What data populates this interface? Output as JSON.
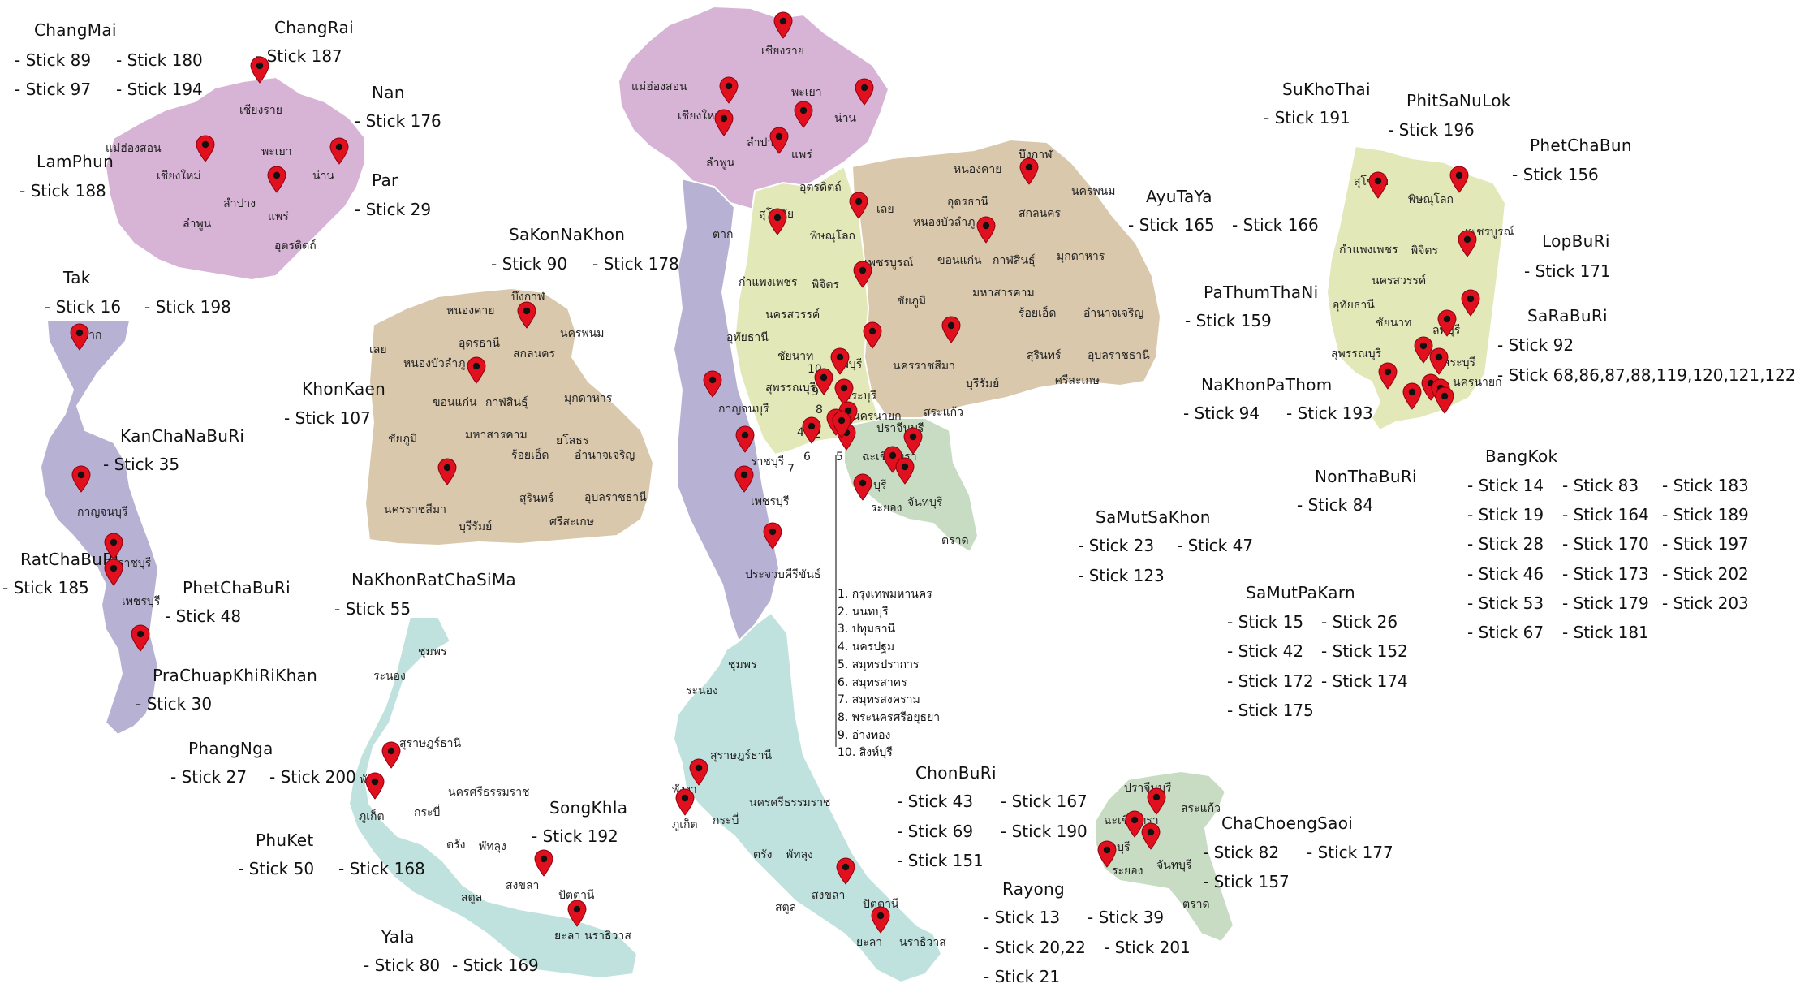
{
  "colors": {
    "north": "#d7b4d6",
    "northeast": "#d9c8ac",
    "west": "#b7b2d4",
    "central": "#e3e8b8",
    "east": "#c7dcc2",
    "south": "#bfe2de",
    "pin": "#e0101e",
    "border": "#ffffff"
  },
  "icon": "map-pin-icon",
  "thai_labels": {
    "chiangrai": "เชียงราย",
    "maehongson": "แม่ฮ่องสอน",
    "chiangmai": "เชียงใหม่",
    "phayao": "พะเยา",
    "lampang": "ลำปาง",
    "lamphun": "ลำพูน",
    "phrae": "แพร่",
    "nan": "น่าน",
    "uttaradit": "อุตรดิตถ์",
    "tak": "ตาก",
    "sukhothai": "สุโขทัย",
    "phitsanulok": "พิษณุโลก",
    "phetchabun": "เพชรบูรณ์",
    "kamphaengphet": "กำแพงเพชร",
    "phichit": "พิจิตร",
    "nakhonsawan": "นครสวรรค์",
    "uthaithani": "อุทัยธานี",
    "chainat": "ชัยนาท",
    "suphanburi": "สุพรรณบุรี",
    "lopburi": "ลพบุรี",
    "saraburi": "สระบุรี",
    "nakhonnayok": "นครนายก",
    "prachinburi": "ปราจีนบุรี",
    "sakaeo": "สระแก้ว",
    "chachoengsao": "ฉะเชิงเทรา",
    "chonburi": "ชลบุรี",
    "rayong": "ระยอง",
    "chanthaburi": "จันทบุรี",
    "trat": "ตราด",
    "kanchanaburi": "กาญจนบุรี",
    "ratchaburi": "ราชบุรี",
    "phetchaburi": "เพชรบุรี",
    "prachuap": "ประจวบคีรีขันธ์",
    "chumphon": "ชุมพร",
    "ranong": "ระนอง",
    "suratthani": "สุราษฎร์ธานี",
    "phangnga": "พังงา",
    "phuket": "ภูเก็ต",
    "krabi": "กระบี่",
    "nakhonsithammarat": "นครศรีธรรมราช",
    "trang": "ตรัง",
    "phatthalung": "พัทลุง",
    "satun": "สตูล",
    "songkhla": "สงขลา",
    "pattani": "ปัตตานี",
    "yala": "ยะลา",
    "narathiwat": "นราธิวาส",
    "loei": "เลย",
    "nongkhai": "หนองคาย",
    "buengkan": "บึงกาฬ",
    "udonthani": "อุดรธานี",
    "sakonnakhon": "สกลนคร",
    "nakhonphanom": "นครพนม",
    "nongbualamphu": "หนองบัวลำภู",
    "khonkaen": "ขอนแก่น",
    "kalasin": "กาฬสินธุ์",
    "mukdahan": "มุกดาหาร",
    "chaiyaphum": "ชัยภูมิ",
    "mahasarakham": "มหาสารคาม",
    "roiet": "ร้อยเอ็ด",
    "yasothon": "ยโสธร",
    "amnatcharoen": "อำนาจเจริญ",
    "nakhonratchasima": "นครราชสีมา",
    "buriram": "บุรีรัมย์",
    "surin": "สุรินทร์",
    "sisaket": "ศรีสะเกษ",
    "ubon": "อุบลราชธานี"
  },
  "legend": [
    "1. กรุงเทพมหานคร",
    "2. นนทบุรี",
    "3. ปทุมธานี",
    "4. นครปฐม",
    "5. สมุทรปราการ",
    "6. สมุทรสาคร",
    "7. สมุทรสงคราม",
    "8. พระนครศรีอยุธยา",
    "9. อ่างทอง",
    "10. สิงห์บุรี"
  ],
  "regions": {
    "changmai": {
      "name": "ChangMai",
      "sticks": [
        "- Stick 89",
        "- Stick 97",
        "- Stick 180",
        "- Stick 194"
      ]
    },
    "changrai": {
      "name": "ChangRai",
      "sticks": [
        "- Stick 187"
      ]
    },
    "nan": {
      "name": "Nan",
      "sticks": [
        "- Stick 176"
      ]
    },
    "par": {
      "name": "Par",
      "sticks": [
        "- Stick 29"
      ]
    },
    "lamphun": {
      "name": "LamPhun",
      "sticks": [
        "- Stick 188"
      ]
    },
    "tak": {
      "name": "Tak",
      "sticks": [
        "- Stick 16",
        "- Stick 198"
      ]
    },
    "kanchanaburi": {
      "name": "KanChaNaBuRi",
      "sticks": [
        "- Stick 35"
      ]
    },
    "ratchaburi": {
      "name": "RatChaBuRi",
      "sticks": [
        "- Stick 185"
      ]
    },
    "phetchaburi": {
      "name": "PhetChaBuRi",
      "sticks": [
        "- Stick 48"
      ]
    },
    "prachuap": {
      "name": "PraChuapKhiRiKhan",
      "sticks": [
        "- Stick 30"
      ]
    },
    "sakonnakhon": {
      "name": "SaKonNaKhon",
      "sticks": [
        "- Stick 90",
        "- Stick 178"
      ]
    },
    "khonkaen": {
      "name": "KhonKaen",
      "sticks": [
        "- Stick 107"
      ]
    },
    "nakhonratchasima": {
      "name": "NaKhonRatChaSiMa",
      "sticks": [
        "- Stick 55"
      ]
    },
    "phangnga": {
      "name": "PhangNga",
      "sticks": [
        "- Stick 27",
        "- Stick 200"
      ]
    },
    "phuket": {
      "name": "PhuKet",
      "sticks": [
        "- Stick 50",
        "- Stick 168"
      ]
    },
    "songkhla": {
      "name": "SongKhla",
      "sticks": [
        "- Stick 192"
      ]
    },
    "yala": {
      "name": "Yala",
      "sticks": [
        "- Stick 80",
        "- Stick 169"
      ]
    },
    "chonburi": {
      "name": "ChonBuRi",
      "sticks": [
        "- Stick 43",
        "- Stick 69",
        "- Stick 151",
        "- Stick 167",
        "- Stick 190"
      ]
    },
    "rayong": {
      "name": "Rayong",
      "sticks": [
        "- Stick 13",
        "- Stick 20,22",
        "- Stick 21",
        "- Stick 39",
        "- Stick 201"
      ]
    },
    "chachoengsao": {
      "name": "ChaChoengSaoi",
      "sticks": [
        "- Stick 82",
        "- Stick 157",
        "- Stick 177"
      ]
    },
    "ayutaya": {
      "name": "AyuTaYa",
      "sticks": [
        "- Stick 165",
        "- Stick 166"
      ]
    },
    "pathumthani": {
      "name": "PaThumThaNi",
      "sticks": [
        "- Stick 159"
      ]
    },
    "nakhonpathom": {
      "name": "NaKhonPaThom",
      "sticks": [
        "- Stick 94",
        "- Stick 193"
      ]
    },
    "nonthaburi": {
      "name": "NonThaBuRi",
      "sticks": [
        "- Stick 84"
      ]
    },
    "samutsakhon": {
      "name": "SaMutSaKhon",
      "sticks": [
        "- Stick 23",
        "- Stick 123",
        "- Stick 47"
      ]
    },
    "samutprakarn": {
      "name": "SaMutPaKarn",
      "sticks": [
        "- Stick 15",
        "- Stick 42",
        "- Stick 172",
        "- Stick 175",
        "- Stick 26",
        "- Stick 152",
        "- Stick 174"
      ]
    },
    "sukhothai": {
      "name": "SuKhoThai",
      "sticks": [
        "- Stick 191"
      ]
    },
    "phitsanulok": {
      "name": "PhitSaNuLok",
      "sticks": [
        "- Stick 196"
      ]
    },
    "phetchabun": {
      "name": "PhetChaBun",
      "sticks": [
        "- Stick 156"
      ]
    },
    "lopburi": {
      "name": "LopBuRi",
      "sticks": [
        "- Stick 171"
      ]
    },
    "saraburi": {
      "name": "SaRaBuRi",
      "sticks": [
        "- Stick 92",
        "- Stick 68,86,87,88,119,120,121,122"
      ]
    },
    "bangkok": {
      "name": "BangKok",
      "sticks": [
        "- Stick 14",
        "- Stick 19",
        "- Stick 28",
        "- Stick 46",
        "- Stick 53",
        "- Stick 67",
        "- Stick 83",
        "- Stick 164",
        "- Stick 170",
        "- Stick 173",
        "- Stick 179",
        "- Stick 181",
        "- Stick 183",
        "- Stick 189",
        "- Stick 197",
        "- Stick 202",
        "- Stick 203"
      ]
    }
  },
  "map_numbers": [
    "1",
    "2",
    "3",
    "4",
    "5",
    "6",
    "7",
    "8",
    "9",
    "10"
  ]
}
